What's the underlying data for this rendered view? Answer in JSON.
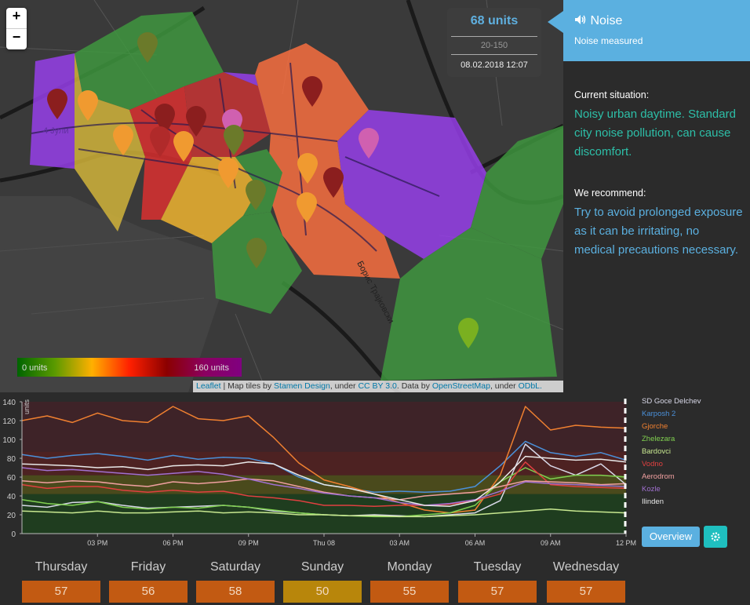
{
  "map": {
    "zoom_in": "+",
    "zoom_out": "−",
    "street_label_1": "4 Јули",
    "street_label_2": "Борис Трајковски",
    "legend_min": "0 units",
    "legend_max": "160 units",
    "attribution": {
      "leaflet": "Leaflet",
      "sep1": " | Map tiles by ",
      "stamen": "Stamen Design",
      "sep2": ", under ",
      "cc": "CC BY 3.0",
      "sep3": ". Data by ",
      "osm": "OpenStreetMap",
      "sep4": ", under ",
      "odbl": "ODbL."
    }
  },
  "unit_box": {
    "value": "68 units",
    "range": "20-150",
    "datetime": "08.02.2018 12:07"
  },
  "panel": {
    "title": "Noise",
    "subtitle": "Noise measured",
    "current_heading": "Current situation:",
    "current_text": "Noisy urban daytime. Standard city noise pollution, can cause discomfort.",
    "recommend_heading": "We recommend:",
    "recommend_text": "Try to avoid prolonged exposure as it can be irritating, no medical precautions necessary.",
    "colors": {
      "accent": "#5bb0e0",
      "current_text": "#2dbfa8",
      "recommend_text": "#5bb0e0"
    }
  },
  "buttons": {
    "overview": "Overview",
    "settings_icon": "gear-icon"
  },
  "days": [
    {
      "name": "Thursday",
      "value": "57",
      "color": "#c25a12"
    },
    {
      "name": "Friday",
      "value": "56",
      "color": "#c25a12"
    },
    {
      "name": "Saturday",
      "value": "58",
      "color": "#c25a12"
    },
    {
      "name": "Sunday",
      "value": "50",
      "color": "#b8860b"
    },
    {
      "name": "Monday",
      "value": "55",
      "color": "#c25a12"
    },
    {
      "name": "Tuesday",
      "value": "57",
      "color": "#c25a12"
    },
    {
      "name": "Wednesday",
      "value": "57",
      "color": "#c25a12"
    }
  ],
  "chart_data": {
    "type": "line",
    "ylabel": "units",
    "ylim": [
      0,
      140
    ],
    "yticks": [
      0,
      20,
      40,
      60,
      80,
      100,
      120,
      140
    ],
    "xlim": [
      0,
      24
    ],
    "xticks": [
      {
        "at": 3,
        "label": "03 PM"
      },
      {
        "at": 6,
        "label": "06 PM"
      },
      {
        "at": 9,
        "label": "09 PM"
      },
      {
        "at": 12,
        "label": "Thu 08"
      },
      {
        "at": 15,
        "label": "03 AM"
      },
      {
        "at": 18,
        "label": "06 AM"
      },
      {
        "at": 21,
        "label": "09 AM"
      },
      {
        "at": 24,
        "label": "12 PM"
      }
    ],
    "bands": [
      {
        "from": 0,
        "to": 42,
        "color": "#1f3d1f"
      },
      {
        "from": 42,
        "to": 62,
        "color": "#4a4a1c"
      },
      {
        "from": 62,
        "to": 87,
        "color": "#4d2222"
      },
      {
        "from": 87,
        "to": 140,
        "color": "#3e2328"
      }
    ],
    "x": [
      0,
      1,
      2,
      3,
      4,
      5,
      6,
      7,
      8,
      9,
      10,
      11,
      12,
      13,
      14,
      15,
      16,
      17,
      18,
      19,
      20,
      21,
      22,
      23,
      24
    ],
    "series": [
      {
        "name": "SD Goce Delchev",
        "color": "#d8d8e8",
        "values": [
          30,
          28,
          33,
          34,
          30,
          27,
          28,
          29,
          30,
          28,
          24,
          22,
          20,
          19,
          20,
          19,
          18,
          20,
          22,
          35,
          95,
          72,
          62,
          74,
          52
        ]
      },
      {
        "name": "Karposh 2",
        "color": "#4a90d9",
        "values": [
          84,
          80,
          83,
          85,
          82,
          78,
          83,
          79,
          81,
          80,
          74,
          60,
          52,
          48,
          44,
          45,
          44,
          45,
          50,
          72,
          98,
          86,
          82,
          86,
          78
        ]
      },
      {
        "name": "Gjorche",
        "color": "#f08030",
        "values": [
          120,
          125,
          118,
          128,
          120,
          118,
          135,
          122,
          120,
          125,
          102,
          75,
          57,
          50,
          42,
          33,
          25,
          22,
          25,
          62,
          135,
          110,
          115,
          113,
          112
        ]
      },
      {
        "name": "Zhelezara",
        "color": "#80d050",
        "values": [
          36,
          32,
          30,
          34,
          28,
          26,
          28,
          27,
          30,
          28,
          25,
          22,
          20,
          19,
          18,
          18,
          20,
          22,
          30,
          55,
          70,
          58,
          62,
          62,
          60
        ]
      },
      {
        "name": "Bardovci",
        "color": "#c8e890",
        "values": [
          24,
          23,
          22,
          24,
          22,
          22,
          23,
          24,
          22,
          23,
          22,
          20,
          20,
          19,
          19,
          18,
          18,
          19,
          20,
          22,
          24,
          26,
          24,
          23,
          22
        ]
      },
      {
        "name": "Vodno",
        "color": "#e04040",
        "values": [
          52,
          48,
          50,
          50,
          46,
          44,
          46,
          44,
          45,
          40,
          38,
          35,
          30,
          30,
          29,
          30,
          30,
          31,
          35,
          42,
          76,
          52,
          50,
          49,
          48
        ]
      },
      {
        "name": "Aerodrom",
        "color": "#f0a0a0",
        "values": [
          56,
          54,
          56,
          55,
          52,
          50,
          55,
          53,
          55,
          58,
          56,
          50,
          44,
          40,
          38,
          36,
          40,
          42,
          44,
          50,
          56,
          55,
          54,
          52,
          53
        ]
      },
      {
        "name": "Kozle",
        "color": "#a070d0",
        "values": [
          70,
          67,
          68,
          66,
          64,
          62,
          64,
          66,
          63,
          58,
          52,
          48,
          43,
          40,
          38,
          33,
          30,
          32,
          36,
          45,
          55,
          53,
          52,
          51,
          50
        ]
      },
      {
        "name": "Ilinden",
        "color": "#e8e8e8",
        "values": [
          74,
          73,
          72,
          70,
          71,
          68,
          72,
          73,
          72,
          76,
          74,
          62,
          52,
          48,
          42,
          36,
          30,
          29,
          35,
          55,
          82,
          80,
          78,
          79,
          76
        ]
      }
    ]
  }
}
